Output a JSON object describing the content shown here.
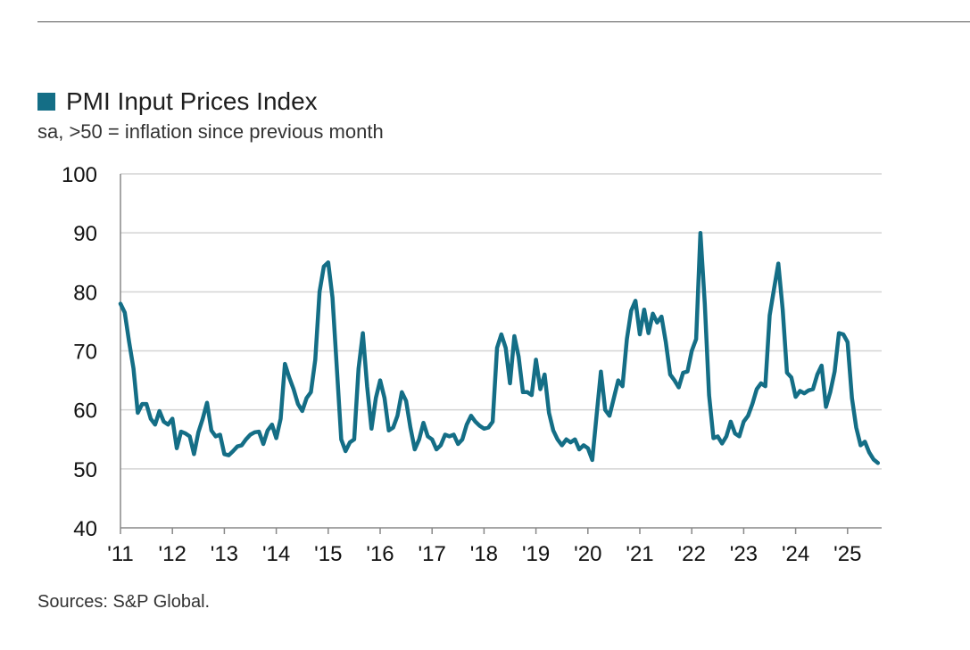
{
  "legend": {
    "label": "PMI Input Prices Index",
    "color": "#146E86"
  },
  "subtitle": "sa, >50 = inflation since previous month",
  "source": "Sources: S&P Global.",
  "chart_data": {
    "type": "line",
    "ylim": [
      40,
      100
    ],
    "yticks": [
      40,
      50,
      60,
      70,
      80,
      90,
      100
    ],
    "xticks": [
      "'11",
      "'12",
      "'13",
      "'14",
      "'15",
      "'16",
      "'17",
      "'18",
      "'19",
      "'20",
      "'21",
      "'22",
      "'23",
      "'24",
      "'25"
    ],
    "grid": "horizontal",
    "start": "2011-01",
    "series": [
      {
        "name": "PMI Input Prices Index",
        "color": "#146E86",
        "values": [
          78.0,
          76.5,
          71.5,
          67.0,
          59.5,
          61.0,
          61.0,
          58.5,
          57.5,
          59.8,
          58.0,
          57.5,
          58.5,
          53.5,
          56.3,
          56.0,
          55.5,
          52.5,
          56.2,
          58.5,
          61.2,
          56.5,
          55.5,
          55.8,
          52.5,
          52.3,
          53.0,
          53.8,
          54.0,
          55.0,
          55.8,
          56.2,
          56.3,
          54.2,
          56.5,
          57.5,
          55.2,
          58.5,
          67.8,
          65.5,
          63.5,
          61.0,
          59.8,
          62.0,
          63.0,
          68.5,
          80.0,
          84.3,
          85.0,
          79.0,
          67.0,
          55.0,
          53.0,
          54.5,
          55.0,
          67.0,
          73.0,
          64.0,
          56.8,
          62.0,
          65.0,
          62.0,
          56.5,
          57.0,
          59.0,
          63.0,
          61.5,
          57.0,
          53.3,
          55.0,
          57.8,
          55.5,
          55.0,
          53.3,
          54.0,
          55.8,
          55.5,
          55.8,
          54.2,
          55.0,
          57.5,
          59.0,
          58.0,
          57.3,
          56.8,
          57.0,
          58.0,
          70.5,
          72.8,
          70.5,
          64.5,
          72.5,
          69.0,
          63.0,
          63.0,
          62.5,
          68.5,
          63.5,
          66.0,
          59.5,
          56.5,
          55.0,
          54.0,
          55.0,
          54.5,
          55.0,
          53.3,
          54.0,
          53.5,
          51.5,
          59.0,
          66.5,
          60.0,
          59.0,
          62.0,
          65.0,
          64.0,
          72.0,
          76.8,
          78.5,
          72.8,
          77.0,
          73.0,
          76.3,
          74.8,
          75.8,
          71.5,
          66.0,
          65.0,
          63.8,
          66.3,
          66.5,
          70.0,
          72.0,
          90.0,
          78.0,
          62.5,
          55.2,
          55.5,
          54.3,
          55.5,
          58.0,
          56.0,
          55.5,
          58.0,
          59.0,
          61.0,
          63.5,
          64.5,
          64.0,
          76.0,
          80.5,
          84.8,
          77.0,
          66.3,
          65.5,
          62.2,
          63.2,
          62.8,
          63.3,
          63.5,
          66.0,
          67.5,
          60.5,
          63.0,
          66.5,
          73.0,
          72.8,
          71.5,
          62.0,
          57.0,
          54.0,
          54.6,
          52.8,
          51.6,
          51.0
        ]
      }
    ]
  }
}
